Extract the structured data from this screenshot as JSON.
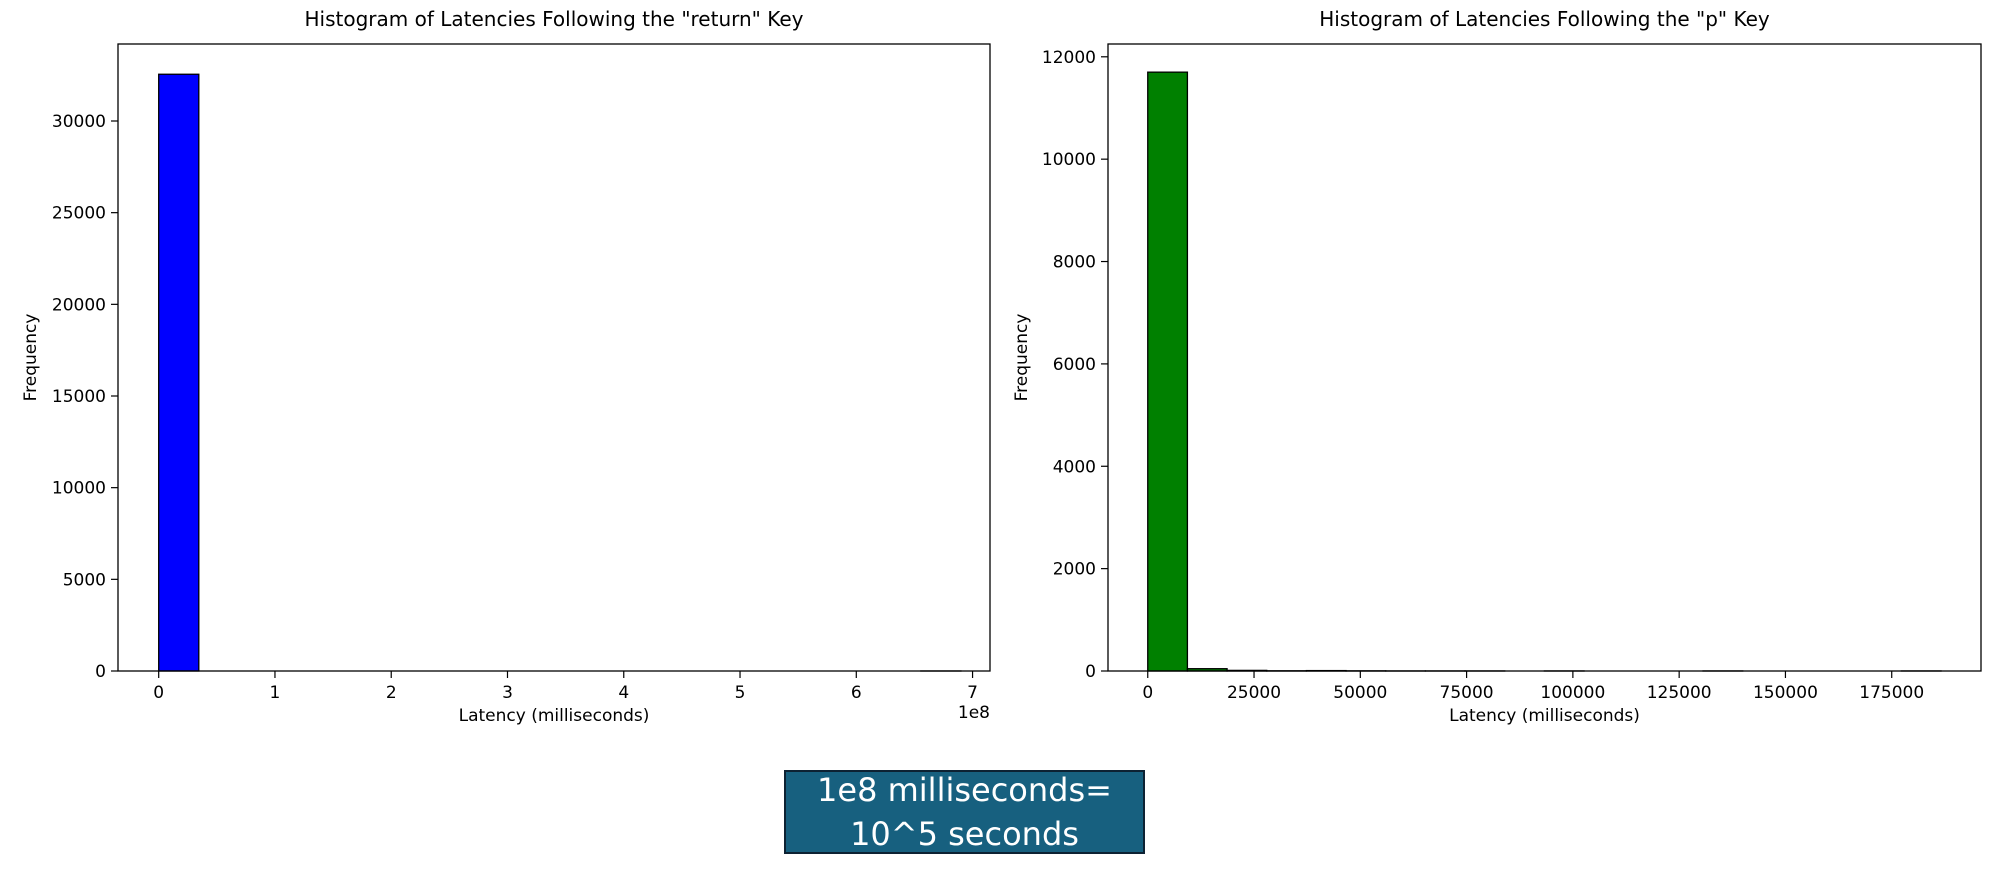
{
  "chart_data": [
    {
      "type": "bar",
      "title": "Histogram of Latencies Following the \"return\" Key",
      "xlabel": "Latency (milliseconds)",
      "ylabel": "Frequency",
      "x_offset_label": "1e8",
      "xlim": [
        -0.35,
        7.15
      ],
      "ylim": [
        0,
        34200
      ],
      "x_ticks": [
        0,
        1,
        2,
        3,
        4,
        5,
        6,
        7
      ],
      "x_tick_labels": [
        "0",
        "1",
        "2",
        "3",
        "4",
        "5",
        "6",
        "7"
      ],
      "y_ticks": [
        0,
        5000,
        10000,
        15000,
        20000,
        25000,
        30000
      ],
      "y_tick_labels": [
        "0",
        "5000",
        "10000",
        "15000",
        "20000",
        "25000",
        "30000"
      ],
      "bin_width": 0.345,
      "bins_start": [
        0,
        0.345,
        0.69,
        1.035,
        1.38,
        1.725,
        2.07,
        2.415,
        2.76,
        3.105,
        3.45,
        3.795,
        4.14,
        4.485,
        4.83,
        5.175,
        5.52,
        5.865,
        6.21,
        6.555
      ],
      "values": [
        32550,
        0,
        0,
        0,
        0,
        0,
        0,
        0,
        0,
        0,
        0,
        0,
        0,
        0,
        0,
        0,
        0,
        0,
        0,
        1
      ],
      "bar_color": "#0000ff",
      "edge_color": "#000000",
      "grid": false
    },
    {
      "type": "bar",
      "title": "Histogram of Latencies Following the \"p\" Key",
      "xlabel": "Latency (milliseconds)",
      "ylabel": "Frequency",
      "xlim": [
        -9350,
        196000
      ],
      "ylim": [
        0,
        12250
      ],
      "x_ticks": [
        0,
        25000,
        50000,
        75000,
        100000,
        125000,
        150000,
        175000
      ],
      "x_tick_labels": [
        "0",
        "25000",
        "50000",
        "75000",
        "100000",
        "125000",
        "150000",
        "175000"
      ],
      "y_ticks": [
        0,
        2000,
        4000,
        6000,
        8000,
        10000,
        12000
      ],
      "y_tick_labels": [
        "0",
        "2000",
        "4000",
        "6000",
        "8000",
        "10000",
        "12000"
      ],
      "bin_width": 9330,
      "bins_start": [
        0,
        9330,
        18660,
        27990,
        37320,
        46650,
        55980,
        65310,
        74640,
        83970,
        93300,
        102630,
        111960,
        121290,
        130620,
        139950,
        149280,
        158610,
        167940,
        177270
      ],
      "values": [
        11700,
        45,
        12,
        4,
        8,
        3,
        1,
        1,
        1,
        0,
        1,
        0,
        0,
        0,
        1,
        0,
        0,
        0,
        0,
        1
      ],
      "bar_color": "#008000",
      "edge_color": "#000000",
      "grid": false
    }
  ],
  "note": {
    "line1": "1e8 milliseconds=",
    "line2": "10^5 seconds",
    "background": "#17607f",
    "border": "#0d2233"
  }
}
